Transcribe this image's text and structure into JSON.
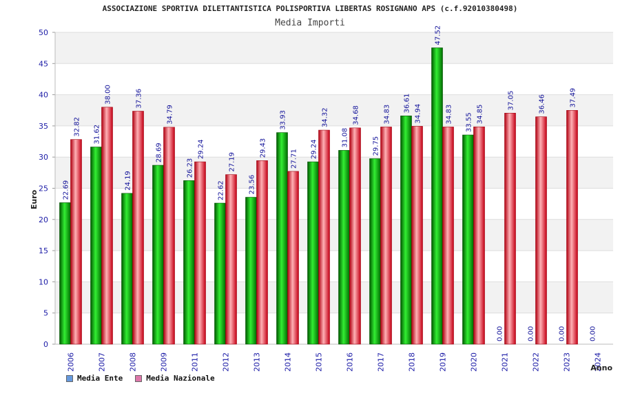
{
  "chart_data": {
    "type": "bar",
    "title": "ASSOCIAZIONE SPORTIVA DILETTANTISTICA POLISPORTIVA LIBERTAS ROSIGNANO APS (c.f.92010380498)",
    "subtitle": "Media Importi",
    "xlabel": "Anno",
    "ylabel": "Euro",
    "ylim": [
      0,
      50
    ],
    "yticks": [
      0,
      5,
      10,
      15,
      20,
      25,
      30,
      35,
      40,
      45,
      50
    ],
    "grid": true,
    "legend_position": "bottom-left",
    "categories": [
      "2006",
      "2007",
      "2008",
      "2009",
      "2011",
      "2012",
      "2013",
      "2014",
      "2015",
      "2016",
      "2017",
      "2018",
      "2019",
      "2020",
      "2021",
      "2022",
      "2023",
      "2024"
    ],
    "series": [
      {
        "name": "Media Ente",
        "color": "#00a000",
        "legend_color": "#6699dd",
        "values": [
          22.69,
          31.62,
          24.19,
          28.69,
          26.23,
          22.62,
          23.56,
          33.93,
          29.24,
          31.08,
          29.75,
          36.61,
          47.52,
          33.55,
          0,
          0,
          0,
          0
        ],
        "labels": [
          "22.69",
          "31.62",
          "24.19",
          "28.69",
          "26.23",
          "22.62",
          "23.56",
          "33.93",
          "29.24",
          "31.08",
          "29.75",
          "36.61",
          "47.52",
          "33.55",
          "0.00",
          "0.00",
          "0.00",
          "0.00"
        ]
      },
      {
        "name": "Media Nazionale",
        "color": "#e0202a",
        "legend_color": "#dd77aa",
        "values": [
          32.82,
          38.0,
          37.36,
          34.79,
          29.24,
          27.19,
          29.43,
          27.71,
          34.32,
          34.68,
          34.83,
          34.94,
          34.83,
          34.85,
          37.05,
          36.46,
          37.49,
          null
        ],
        "labels": [
          "32.82",
          "38.00",
          "37.36",
          "34.79",
          "29.24",
          "27.19",
          "29.43",
          "27.71",
          "34.32",
          "34.68",
          "34.83",
          "34.94",
          "34.83",
          "34.85",
          "37.05",
          "36.46",
          "37.49",
          null
        ]
      }
    ]
  }
}
